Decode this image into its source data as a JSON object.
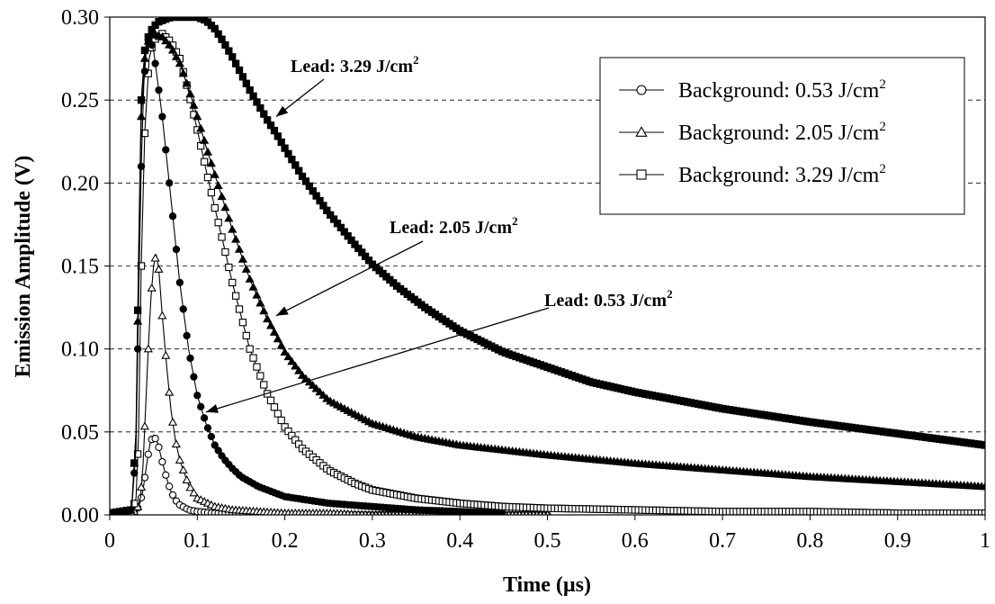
{
  "chart_data": {
    "type": "scatter",
    "xlabel": "Time (µs)",
    "ylabel": "Emission Amplitude (V)",
    "xlim": [
      0,
      1
    ],
    "ylim": [
      0,
      0.3
    ],
    "x_ticks": [
      "0",
      "0.1",
      "0.2",
      "0.3",
      "0.4",
      "0.5",
      "0.6",
      "0.7",
      "0.8",
      "0.9",
      "1"
    ],
    "y_ticks": [
      "0.00",
      "0.05",
      "0.10",
      "0.15",
      "0.20",
      "0.25",
      "0.30"
    ],
    "grid": "horizontal-dashed",
    "legend_position": "top-right",
    "legend": [
      {
        "label": "Background: 0.53 J/cm",
        "sup": "2",
        "marker": "circle-open"
      },
      {
        "label": "Background: 2.05 J/cm",
        "sup": "2",
        "marker": "triangle-open"
      },
      {
        "label": "Background: 3.29 J/cm",
        "sup": "2",
        "marker": "square-open"
      }
    ],
    "annotations": [
      {
        "text": "Lead: 3.29 J/cm",
        "sup": "2",
        "series": "Lead: 3.29 J/cm2",
        "arrow_to": [
          0.19,
          0.24
        ]
      },
      {
        "text": "Lead: 2.05 J/cm",
        "sup": "2",
        "series": "Lead: 2.05 J/cm2",
        "arrow_to": [
          0.19,
          0.12
        ]
      },
      {
        "text": "Lead: 0.53 J/cm",
        "sup": "2",
        "series": "Lead: 0.53 J/cm2",
        "arrow_to": [
          0.11,
          0.062
        ]
      }
    ],
    "series": [
      {
        "name": "Background: 0.53 J/cm2",
        "marker": "circle-open",
        "filled": false,
        "x": [
          0,
          0.025,
          0.031,
          0.035,
          0.038,
          0.042,
          0.046,
          0.05,
          0.055,
          0.06,
          0.065,
          0.07,
          0.075,
          0.08,
          0.09,
          0.1,
          0.12,
          0.15,
          0.2,
          0.3,
          0.4,
          0.5
        ],
        "y": [
          0.001,
          0.001,
          0.003,
          0.008,
          0.015,
          0.03,
          0.043,
          0.048,
          0.043,
          0.032,
          0.022,
          0.014,
          0.009,
          0.006,
          0.003,
          0.002,
          0.001,
          0.001,
          0.0,
          0.0,
          0.0,
          0.0
        ]
      },
      {
        "name": "Background: 2.05 J/cm2",
        "marker": "triangle-open",
        "filled": false,
        "x": [
          0,
          0.025,
          0.031,
          0.035,
          0.038,
          0.041,
          0.044,
          0.047,
          0.05,
          0.053,
          0.056,
          0.06,
          0.065,
          0.07,
          0.075,
          0.08,
          0.09,
          0.1,
          0.12,
          0.14,
          0.17,
          0.2,
          0.25,
          0.3,
          0.4,
          0.5
        ],
        "y": [
          0.001,
          0.001,
          0.003,
          0.01,
          0.03,
          0.065,
          0.1,
          0.13,
          0.15,
          0.157,
          0.148,
          0.12,
          0.09,
          0.063,
          0.045,
          0.033,
          0.018,
          0.01,
          0.005,
          0.003,
          0.002,
          0.001,
          0.001,
          0.0,
          0.0,
          0.0
        ]
      },
      {
        "name": "Background: 3.29 J/cm2",
        "marker": "square-open",
        "filled": false,
        "x": [
          0,
          0.025,
          0.03,
          0.033,
          0.036,
          0.04,
          0.045,
          0.05,
          0.06,
          0.07,
          0.08,
          0.09,
          0.1,
          0.11,
          0.12,
          0.13,
          0.14,
          0.15,
          0.16,
          0.18,
          0.2,
          0.22,
          0.25,
          0.28,
          0.3,
          0.35,
          0.4,
          0.45,
          0.5,
          0.6,
          0.7,
          0.8,
          0.9,
          1.0
        ],
        "y": [
          0.001,
          0.002,
          0.01,
          0.05,
          0.15,
          0.23,
          0.275,
          0.286,
          0.29,
          0.285,
          0.275,
          0.255,
          0.232,
          0.208,
          0.185,
          0.163,
          0.14,
          0.12,
          0.1,
          0.073,
          0.053,
          0.04,
          0.027,
          0.019,
          0.015,
          0.01,
          0.007,
          0.005,
          0.004,
          0.003,
          0.002,
          0.002,
          0.001,
          0.001
        ]
      },
      {
        "name": "Lead: 0.53 J/cm2",
        "marker": "circle-filled",
        "filled": true,
        "x": [
          0,
          0.025,
          0.03,
          0.033,
          0.036,
          0.039,
          0.042,
          0.045,
          0.05,
          0.06,
          0.07,
          0.08,
          0.09,
          0.1,
          0.11,
          0.12,
          0.13,
          0.14,
          0.15,
          0.17,
          0.2,
          0.25,
          0.3,
          0.35,
          0.4,
          0.45
        ],
        "y": [
          0.001,
          0.003,
          0.04,
          0.13,
          0.21,
          0.26,
          0.282,
          0.288,
          0.28,
          0.24,
          0.19,
          0.14,
          0.1,
          0.072,
          0.055,
          0.042,
          0.034,
          0.028,
          0.023,
          0.017,
          0.011,
          0.007,
          0.005,
          0.003,
          0.002,
          0.001
        ]
      },
      {
        "name": "Lead: 2.05 J/cm2",
        "marker": "triangle-filled",
        "filled": true,
        "x": [
          0.0,
          0.025,
          0.03,
          0.033,
          0.036,
          0.04,
          0.045,
          0.05,
          0.06,
          0.07,
          0.08,
          0.09,
          0.1,
          0.11,
          0.12,
          0.14,
          0.16,
          0.18,
          0.2,
          0.22,
          0.25,
          0.3,
          0.35,
          0.4,
          0.45,
          0.5,
          0.6,
          0.7,
          0.8,
          0.9,
          1.0
        ],
        "y": [
          0.001,
          0.003,
          0.05,
          0.15,
          0.24,
          0.275,
          0.288,
          0.29,
          0.288,
          0.282,
          0.272,
          0.257,
          0.24,
          0.222,
          0.205,
          0.172,
          0.142,
          0.118,
          0.098,
          0.084,
          0.069,
          0.055,
          0.047,
          0.042,
          0.039,
          0.036,
          0.031,
          0.027,
          0.023,
          0.02,
          0.017
        ]
      },
      {
        "name": "Lead: 3.29 J/cm2",
        "marker": "square-filled",
        "filled": true,
        "x": [
          0.0,
          0.025,
          0.03,
          0.033,
          0.036,
          0.04,
          0.045,
          0.05,
          0.055,
          0.06,
          0.07,
          0.08,
          0.09,
          0.1,
          0.11,
          0.12,
          0.13,
          0.14,
          0.15,
          0.16,
          0.17,
          0.18,
          0.19,
          0.2,
          0.22,
          0.25,
          0.28,
          0.3,
          0.33,
          0.36,
          0.4,
          0.45,
          0.5,
          0.55,
          0.6,
          0.7,
          0.8,
          0.9,
          1.0
        ],
        "y": [
          0.001,
          0.003,
          0.05,
          0.16,
          0.25,
          0.28,
          0.29,
          0.294,
          0.297,
          0.298,
          0.3,
          0.3,
          0.3,
          0.3,
          0.298,
          0.293,
          0.285,
          0.276,
          0.266,
          0.256,
          0.247,
          0.238,
          0.23,
          0.221,
          0.204,
          0.182,
          0.163,
          0.151,
          0.137,
          0.125,
          0.111,
          0.098,
          0.089,
          0.08,
          0.074,
          0.064,
          0.056,
          0.049,
          0.042
        ]
      }
    ]
  }
}
